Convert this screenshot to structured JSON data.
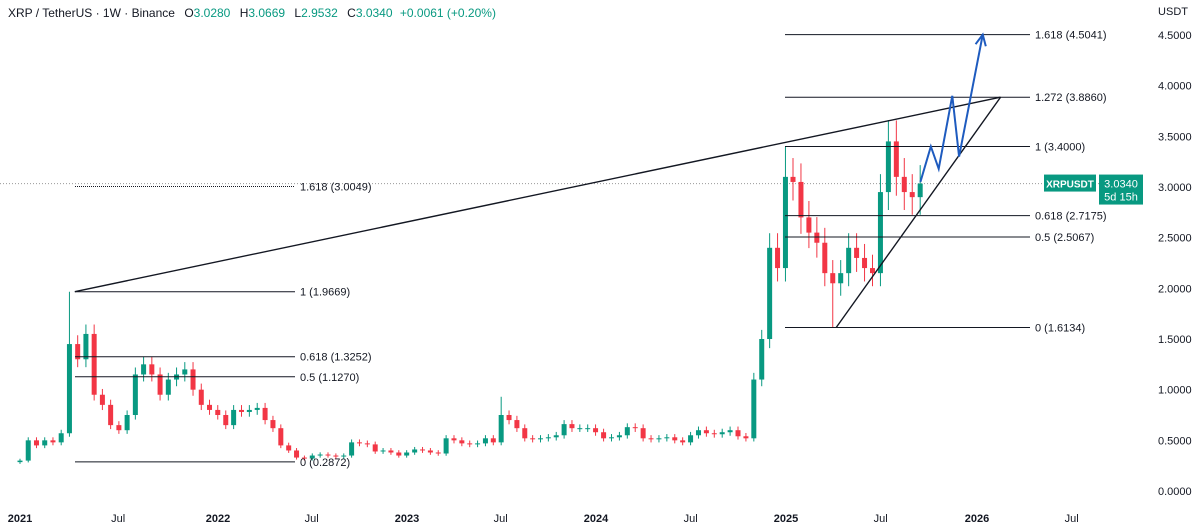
{
  "header": {
    "symbol": "XRP / TetherUS · 1W · Binance",
    "o_label": "O",
    "o": "3.0280",
    "h_label": "H",
    "h": "3.0669",
    "l_label": "L",
    "l": "2.9532",
    "c_label": "C",
    "c": "3.0340",
    "change": "+0.0061 (+0.20%)"
  },
  "currency": "USDT",
  "price_tag": {
    "symbol": "XRPUSDT",
    "price": "3.0340",
    "countdown": "5d 15h"
  },
  "colors": {
    "up": "#089981",
    "down": "#f23645",
    "projection": "#1e5bbf",
    "lines": "#131722"
  },
  "chart_data": {
    "type": "candlestick",
    "interval": "1W",
    "ylim": [
      0,
      4.5
    ],
    "y_ticks": [
      "4.5000",
      "4.0000",
      "3.5000",
      "3.0000",
      "2.5000",
      "2.0000",
      "1.5000",
      "1.0000",
      "0.5000",
      "0.0000"
    ],
    "x_ticks": [
      {
        "label": "2021",
        "date": "2021-01-01",
        "year": true
      },
      {
        "label": "Jul",
        "date": "2021-07-01"
      },
      {
        "label": "2022",
        "date": "2022-01-01",
        "year": true
      },
      {
        "label": "Jul",
        "date": "2022-07-01"
      },
      {
        "label": "2023",
        "date": "2023-01-01",
        "year": true
      },
      {
        "label": "Jul",
        "date": "2023-07-01"
      },
      {
        "label": "2024",
        "date": "2024-01-01",
        "year": true
      },
      {
        "label": "Jul",
        "date": "2024-07-01"
      },
      {
        "label": "2025",
        "date": "2025-01-01",
        "year": true
      },
      {
        "label": "Jul",
        "date": "2025-07-01"
      },
      {
        "label": "2026",
        "date": "2026-01-01",
        "year": true
      },
      {
        "label": "Jul",
        "date": "2026-07-01"
      }
    ],
    "start": "2021-01-01",
    "step_days": 15.2,
    "closes": [
      0.3,
      0.5,
      0.45,
      0.5,
      0.48,
      0.57,
      1.45,
      1.3,
      1.55,
      0.95,
      0.85,
      0.65,
      0.6,
      0.75,
      1.15,
      1.25,
      1.15,
      0.95,
      1.1,
      1.15,
      1.2,
      1.0,
      0.85,
      0.8,
      0.75,
      0.65,
      0.8,
      0.78,
      0.8,
      0.82,
      0.7,
      0.62,
      0.45,
      0.4,
      0.33,
      0.32,
      0.35,
      0.36,
      0.35,
      0.34,
      0.35,
      0.48,
      0.47,
      0.46,
      0.39,
      0.4,
      0.38,
      0.35,
      0.38,
      0.41,
      0.4,
      0.38,
      0.37,
      0.52,
      0.5,
      0.47,
      0.46,
      0.47,
      0.52,
      0.48,
      0.75,
      0.7,
      0.62,
      0.52,
      0.51,
      0.52,
      0.53,
      0.55,
      0.66,
      0.62,
      0.62,
      0.62,
      0.58,
      0.52,
      0.53,
      0.55,
      0.63,
      0.62,
      0.52,
      0.51,
      0.52,
      0.53,
      0.5,
      0.48,
      0.55,
      0.6,
      0.57,
      0.56,
      0.58,
      0.6,
      0.54,
      0.52,
      1.1,
      1.5,
      2.4,
      2.2,
      3.1,
      3.05,
      2.7,
      2.55,
      2.45,
      2.15,
      2.05,
      2.15,
      2.4,
      2.3,
      2.2,
      2.15,
      2.95,
      3.45,
      3.1,
      2.95,
      2.9,
      3.034
    ],
    "wicks": [
      {
        "index": 6,
        "high": 1.9669
      },
      {
        "index": 96,
        "high": 3.4
      },
      {
        "index": 102,
        "low": 1.6134
      },
      {
        "index": 109,
        "high": 3.66
      },
      {
        "index": 60,
        "high": 0.93
      }
    ],
    "current_price": 3.034,
    "fib_left": [
      {
        "label": "1.618 (3.0049)",
        "price": 3.0049,
        "dotted": true
      },
      {
        "label": "1 (1.9669)",
        "price": 1.9669
      },
      {
        "label": "0.618 (1.3252)",
        "price": 1.3252
      },
      {
        "label": "0.5 (1.1270)",
        "price": 1.127
      },
      {
        "label": "0 (0.2872)",
        "price": 0.2872
      }
    ],
    "fib_right": [
      {
        "label": "1.618 (4.5041)",
        "price": 4.5041
      },
      {
        "label": "1.272 (3.8860)",
        "price": 3.886
      },
      {
        "label": "1 (3.4000)",
        "price": 3.4
      },
      {
        "label": "0.618 (2.7175)",
        "price": 2.7175
      },
      {
        "label": "0.5 (2.5067)",
        "price": 2.5067
      },
      {
        "label": "0 (1.6134)",
        "price": 1.6134
      }
    ],
    "trendlines": [
      {
        "from": [
          "2021-04-12",
          1.9669
        ],
        "to": [
          "2026-02-15",
          3.886
        ]
      },
      {
        "from": [
          "2025-04-07",
          1.6134
        ],
        "to": [
          "2026-02-15",
          3.886
        ]
      }
    ],
    "projection": [
      [
        "2025-09-15",
        3.05
      ],
      [
        "2025-10-05",
        3.4
      ],
      [
        "2025-10-20",
        3.18
      ],
      [
        "2025-11-15",
        3.9
      ],
      [
        "2025-11-28",
        3.3
      ],
      [
        "2026-01-12",
        4.5041
      ]
    ]
  }
}
